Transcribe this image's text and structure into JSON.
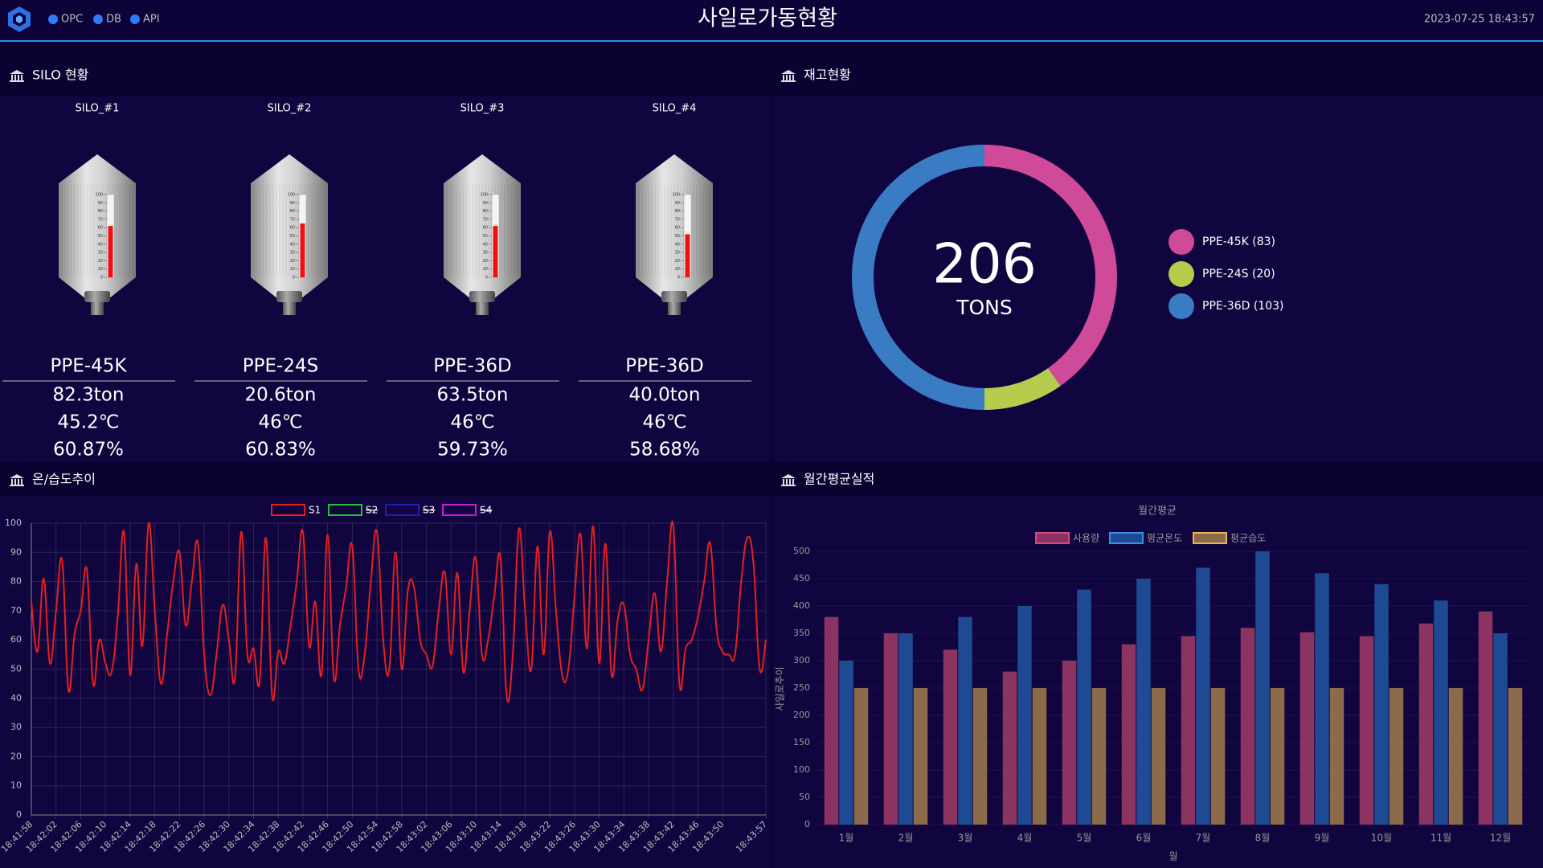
{
  "header": {
    "title": "사일로가동현황",
    "status": [
      "OPC",
      "DB",
      "API"
    ],
    "datetime": "2023-07-25 18:43:57"
  },
  "panels": [
    "SILO 현황",
    "재고현황",
    "온/습도추이",
    "월간평균실적"
  ],
  "silos": {
    "gauge_ticks": [
      0,
      10,
      20,
      30,
      40,
      50,
      60,
      70,
      80,
      90,
      100
    ],
    "items": [
      {
        "name": "SILO_#1",
        "product": "PPE-45K",
        "weight": "82.3ton",
        "temperature": "45.2℃",
        "humidity": "60.87%",
        "level": 62
      },
      {
        "name": "SILO_#2",
        "product": "PPE-24S",
        "weight": "20.6ton",
        "temperature": "46℃",
        "humidity": "60.83%",
        "level": 65
      },
      {
        "name": "SILO_#3",
        "product": "PPE-36D",
        "weight": "63.5ton",
        "temperature": "46℃",
        "humidity": "59.73%",
        "level": 62
      },
      {
        "name": "SILO_#4",
        "product": "PPE-36D",
        "weight": "40.0ton",
        "temperature": "46℃",
        "humidity": "58.68%",
        "level": 52
      }
    ]
  },
  "chart_data": [
    {
      "type": "doughnut",
      "total": 206,
      "center_label": "TONS",
      "categories": [
        "PPE-45K (83)",
        "PPE-24S (20)",
        "PPE-36D (103)"
      ],
      "values": [
        83,
        20,
        103
      ],
      "colors": [
        "#cf4a98",
        "#b5cc4c",
        "#3a7cc4"
      ]
    },
    {
      "type": "line",
      "legend": "top",
      "grid": true,
      "x": [
        "18:41:58",
        null,
        null,
        null,
        "18:42:02",
        null,
        null,
        null,
        "18:42:06",
        null,
        null,
        null,
        "18:42:10",
        null,
        null,
        null,
        "18:42:14",
        null,
        null,
        null,
        "18:42:18",
        null,
        null,
        null,
        "18:42:22",
        null,
        null,
        null,
        "18:42:26",
        null,
        null,
        null,
        "18:42:30",
        null,
        null,
        null,
        "18:42:34",
        null,
        null,
        null,
        "18:42:38",
        null,
        null,
        null,
        "18:42:42",
        null,
        null,
        null,
        "18:42:46",
        null,
        null,
        null,
        "18:42:50",
        null,
        null,
        null,
        "18:42:54",
        null,
        null,
        null,
        "18:42:58",
        null,
        null,
        null,
        "18:43:02",
        null,
        null,
        null,
        "18:43:06",
        null,
        null,
        null,
        "18:43:10",
        null,
        null,
        null,
        "18:43:14",
        null,
        null,
        null,
        "18:43:18",
        null,
        null,
        null,
        "18:43:22",
        null,
        null,
        null,
        "18:43:26",
        null,
        null,
        null,
        "18:43:30",
        null,
        null,
        null,
        "18:43:34",
        null,
        null,
        null,
        "18:43:38",
        null,
        null,
        null,
        "18:43:42",
        null,
        null,
        null,
        "18:43:46",
        null,
        null,
        null,
        "18:43:50",
        null,
        null,
        null,
        null,
        null,
        null,
        "18:43:57"
      ],
      "series": [
        {
          "name": "S1",
          "color": "#e3201f",
          "values": [
            73,
            56,
            81,
            52,
            70,
            87,
            43,
            62,
            70,
            84,
            45,
            60,
            52,
            49,
            68,
            97,
            48,
            86,
            58,
            100,
            70,
            45,
            62,
            80,
            90,
            65,
            80,
            93,
            55,
            41,
            55,
            72,
            60,
            47,
            97,
            55,
            57,
            46,
            95,
            41,
            56,
            52,
            65,
            80,
            97,
            58,
            73,
            48,
            96,
            47,
            65,
            78,
            92,
            50,
            55,
            80,
            97,
            60,
            50,
            90,
            50,
            77,
            78,
            60,
            55,
            51,
            70,
            83,
            55,
            83,
            49,
            70,
            88,
            55,
            60,
            75,
            88,
            41,
            55,
            98,
            70,
            50,
            92,
            55,
            97,
            70,
            48,
            50,
            75,
            96,
            57,
            99,
            52,
            93,
            48,
            67,
            72,
            55,
            50,
            43,
            60,
            76,
            56,
            80,
            99,
            45,
            57,
            60,
            68,
            80,
            93,
            64,
            56,
            55,
            55,
            80,
            95,
            86,
            50,
            60
          ]
        },
        {
          "name": "S2",
          "color": "#22c32e",
          "hidden": true
        },
        {
          "name": "S3",
          "color": "#2020b0",
          "hidden": true
        },
        {
          "name": "S4",
          "color": "#c21fd6",
          "hidden": true
        }
      ],
      "ylim": [
        0,
        100
      ],
      "yticks": [
        0,
        10,
        20,
        30,
        40,
        50,
        60,
        70,
        80,
        90,
        100
      ]
    },
    {
      "type": "bar",
      "title": "월간평균",
      "legend": "top",
      "grid": true,
      "x_label": "월",
      "y_label": "사일로추이",
      "categories": [
        "1월",
        "2월",
        "3월",
        "4월",
        "5월",
        "6월",
        "7월",
        "8월",
        "9월",
        "10월",
        "11월",
        "12월"
      ],
      "series": [
        {
          "name": "사용량",
          "color": "#8b3461",
          "border": "#d9477f",
          "values": [
            380,
            350,
            320,
            280,
            300,
            330,
            345,
            360,
            352,
            345,
            368,
            390
          ]
        },
        {
          "name": "평균온도",
          "color": "#1e4a94",
          "border": "#3a8ee6",
          "values": [
            300,
            350,
            380,
            400,
            430,
            450,
            470,
            500,
            460,
            440,
            410,
            350
          ]
        },
        {
          "name": "평균습도",
          "color": "#8b6b4a",
          "border": "#e8b45a",
          "values": [
            250,
            250,
            250,
            250,
            250,
            250,
            250,
            250,
            250,
            250,
            250,
            250
          ]
        }
      ],
      "ylim": [
        0,
        500
      ],
      "yticks": [
        0,
        50,
        100,
        150,
        200,
        250,
        300,
        350,
        400,
        450,
        500
      ]
    }
  ]
}
